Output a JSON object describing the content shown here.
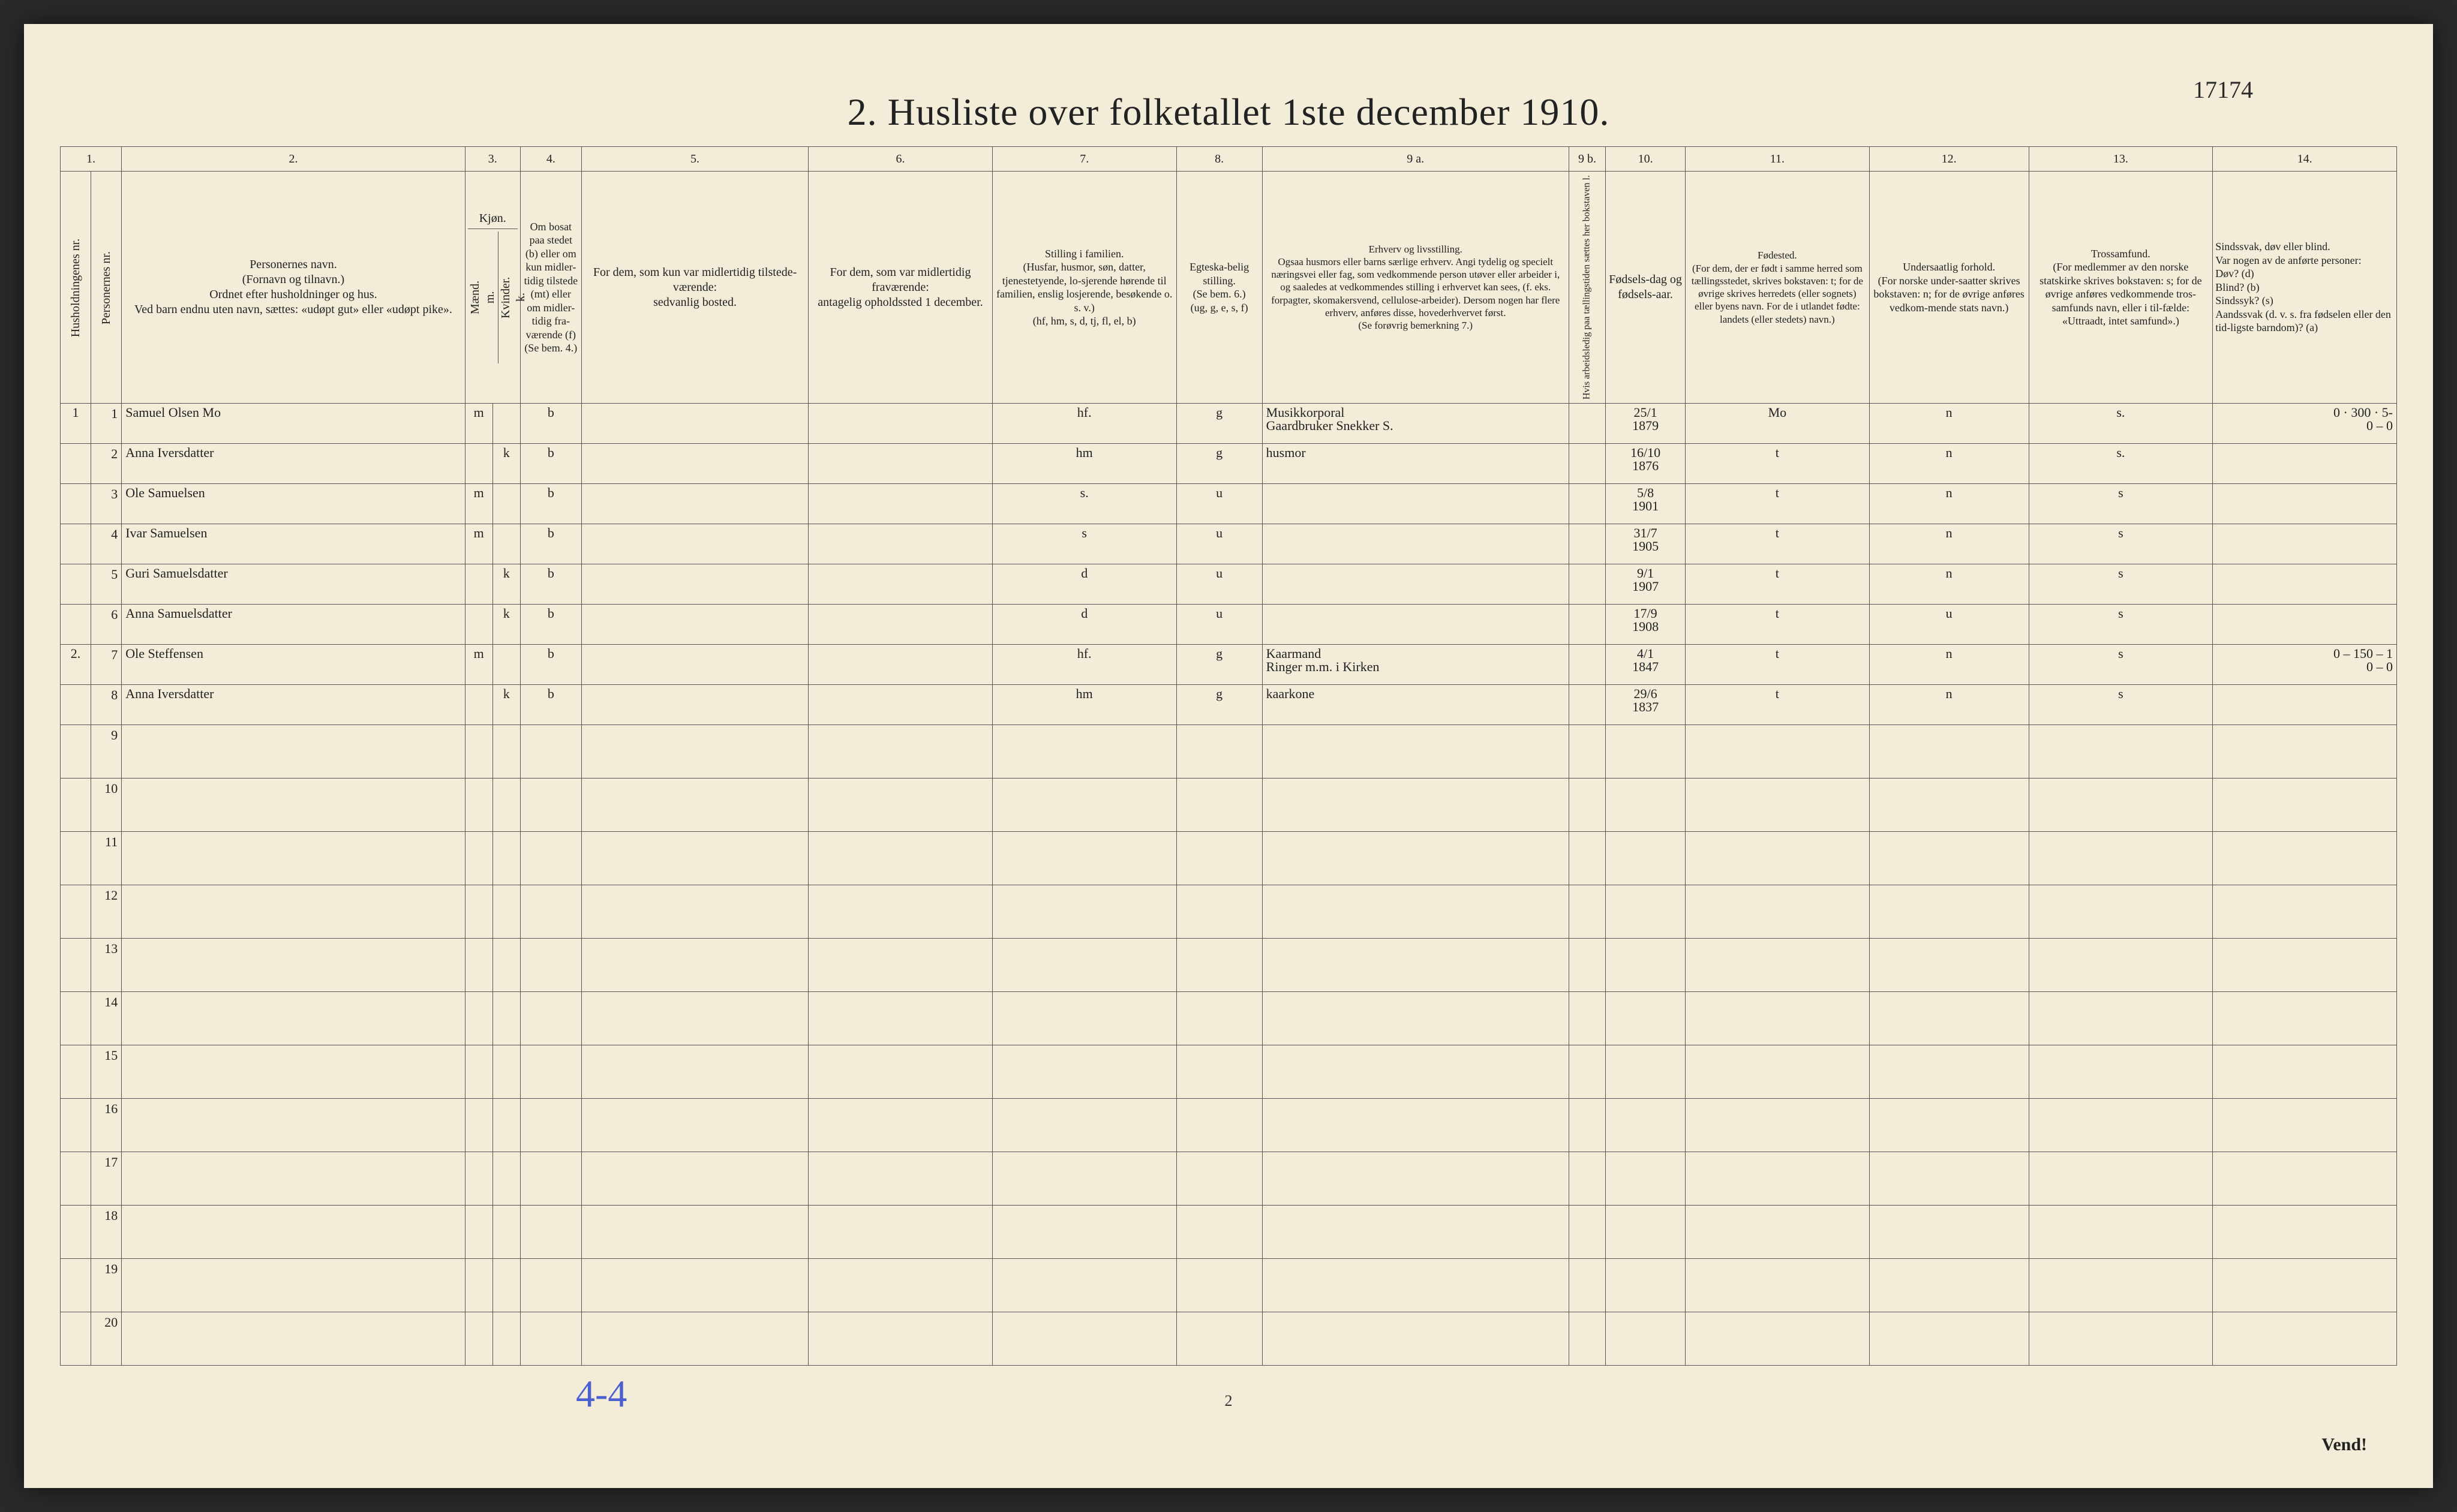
{
  "title": "2.  Husliste over folketallet 1ste december 1910.",
  "top_annotation": "17174",
  "col_numbers": [
    "1.",
    "",
    "2.",
    "3.",
    "",
    "4.",
    "5.",
    "6.",
    "7.",
    "8.",
    "9 a.",
    "9 b.",
    "10.",
    "11.",
    "12.",
    "13.",
    "14."
  ],
  "headers": {
    "hh": "Husholdningenes nr.",
    "pn": "Personernes nr.",
    "name": "Personernes navn.\n(Fornavn og tilnavn.)\nOrdnet efter husholdninger og hus.\nVed barn endnu uten navn, sættes: «udøpt gut» eller «udøpt pike».",
    "sex": "Kjøn.",
    "sex_m": "Mænd.\nm.",
    "sex_k": "Kvinder.\nk.",
    "res": "Om bosat paa stedet (b) eller om kun midler-tidig tilstede (mt) eller om midler-tidig fra-værende (f)\n(Se bem. 4.)",
    "away": "For dem, som kun var midlertidig tilstede-værende:\nsedvanlig bosted.",
    "abs": "For dem, som var midlertidig fraværende:\nantagelig opholdssted 1 december.",
    "fam": "Stilling i familien.\n(Husfar, husmor, søn, datter, tjenestetyende, lo-sjerende hørende til familien, enslig losjerende, besøkende o. s. v.)\n(hf, hm, s, d, tj, fl, el, b)",
    "mar": "Egteska-belig stilling.\n(Se bem. 6.)\n(ug, g, e, s, f)",
    "occ": "Erhverv og livsstilling.\nOgsaa husmors eller barns særlige erhverv. Angi tydelig og specielt næringsvei eller fag, som vedkommende person utøver eller arbeider i, og saaledes at vedkommendes stilling i erhvervet kan sees, (f. eks. forpagter, skomakersvend, cellulose-arbeider). Dersom nogen har flere erhverv, anføres disse, hovederhvervet først.\n(Se forøvrig bemerkning 7.)",
    "work": "Hvis arbeidsledig paa tællingstiden sættes her bokstaven l.",
    "dob": "Fødsels-dag og fødsels-aar.",
    "bpl": "Fødested.\n(For dem, der er født i samme herred som tællingsstedet, skrives bokstaven: t; for de øvrige skrives herredets (eller sognets) eller byens navn. For de i utlandet fødte: landets (eller stedets) navn.)",
    "nat": "Undersaatlig forhold.\n(For norske under-saatter skrives bokstaven: n; for de øvrige anføres vedkom-mende stats navn.)",
    "rel": "Trossamfund.\n(For medlemmer av den norske statskirke skrives bokstaven: s; for de øvrige anføres vedkommende tros-samfunds navn, eller i til-fælde: «Uttraadt, intet samfund».)",
    "inf": "Sindssvak, døv eller blind.\nVar nogen av de anførte personer:\nDøv?        (d)\nBlind?       (b)\nSindssyk?  (s)\nAandssvak (d. v. s. fra fødselen eller den tid-ligste barndom)?  (a)"
  },
  "rows": [
    {
      "hh": "1",
      "pn": "1",
      "name": "Samuel Olsen Mo",
      "sex_m": "m",
      "sex_k": "",
      "res": "b",
      "away": "",
      "abs": "",
      "fam": "hf.",
      "mar": "g",
      "occ": "Musikkorporal\nGaardbruker  Snekker       S.",
      "work": "",
      "dob": "25/1\n1879",
      "bpl": "Mo",
      "nat": "n",
      "rel": "s.",
      "inf": "0 · 300 · 5-\n0 – 0"
    },
    {
      "hh": "",
      "pn": "2",
      "name": "Anna Iversdatter",
      "sex_m": "",
      "sex_k": "k",
      "res": "b",
      "away": "",
      "abs": "",
      "fam": "hm",
      "mar": "g",
      "occ": "husmor",
      "occ_blue": true,
      "work": "",
      "dob": "16/10\n1876",
      "bpl": "t",
      "nat": "n",
      "rel": "s.",
      "inf": ""
    },
    {
      "hh": "",
      "pn": "3",
      "name": "Ole Samuelsen",
      "sex_m": "m",
      "sex_k": "",
      "res": "b",
      "away": "",
      "abs": "",
      "fam": "s.",
      "mar": "u",
      "occ": "",
      "work": "",
      "dob": "5/8\n1901",
      "bpl": "t",
      "nat": "n",
      "rel": "s",
      "inf": ""
    },
    {
      "hh": "",
      "pn": "4",
      "name": "Ivar Samuelsen",
      "sex_m": "m",
      "sex_k": "",
      "res": "b",
      "away": "",
      "abs": "",
      "fam": "s",
      "mar": "u",
      "occ": "",
      "work": "",
      "dob": "31/7\n1905",
      "bpl": "t",
      "nat": "n",
      "rel": "s",
      "inf": ""
    },
    {
      "hh": "",
      "pn": "5",
      "name": "Guri Samuelsdatter",
      "sex_m": "",
      "sex_k": "k",
      "res": "b",
      "away": "",
      "abs": "",
      "fam": "d",
      "mar": "u",
      "occ": "",
      "work": "",
      "dob": "9/1\n1907",
      "bpl": "t",
      "nat": "n",
      "rel": "s",
      "inf": ""
    },
    {
      "hh": "",
      "pn": "6",
      "name": "Anna Samuelsdatter",
      "sex_m": "",
      "sex_k": "k",
      "res": "b",
      "away": "",
      "abs": "",
      "fam": "d",
      "mar": "u",
      "occ": "",
      "work": "",
      "dob": "17/9\n1908",
      "bpl": "t",
      "nat": "u",
      "rel": "s",
      "inf": ""
    },
    {
      "hh": "2.",
      "pn": "7",
      "name": "Ole Steffensen",
      "sex_m": "m",
      "sex_k": "",
      "res": "b",
      "away": "",
      "abs": "",
      "fam": "hf.",
      "mar": "g",
      "occ": "Kaarmand\nRinger m.m. i Kirken",
      "work": "",
      "dob": "4/1\n1847",
      "bpl": "t",
      "nat": "n",
      "rel": "s",
      "inf": "0 – 150 – 1\n0 – 0"
    },
    {
      "hh": "",
      "pn": "8",
      "name": "Anna Iversdatter",
      "sex_m": "",
      "sex_k": "k",
      "res": "b",
      "away": "",
      "abs": "",
      "fam": "hm",
      "mar": "g",
      "occ": "kaarkone",
      "occ_blue": true,
      "work": "",
      "dob": "29/6\n1837",
      "bpl": "t",
      "nat": "n",
      "rel": "s",
      "inf": ""
    }
  ],
  "empty_rows": [
    "9",
    "10",
    "11",
    "12",
    "13",
    "14",
    "15",
    "16",
    "17",
    "18",
    "19",
    "20"
  ],
  "footer_annotation": "4-4",
  "page_number": "2",
  "vend": "Vend!"
}
